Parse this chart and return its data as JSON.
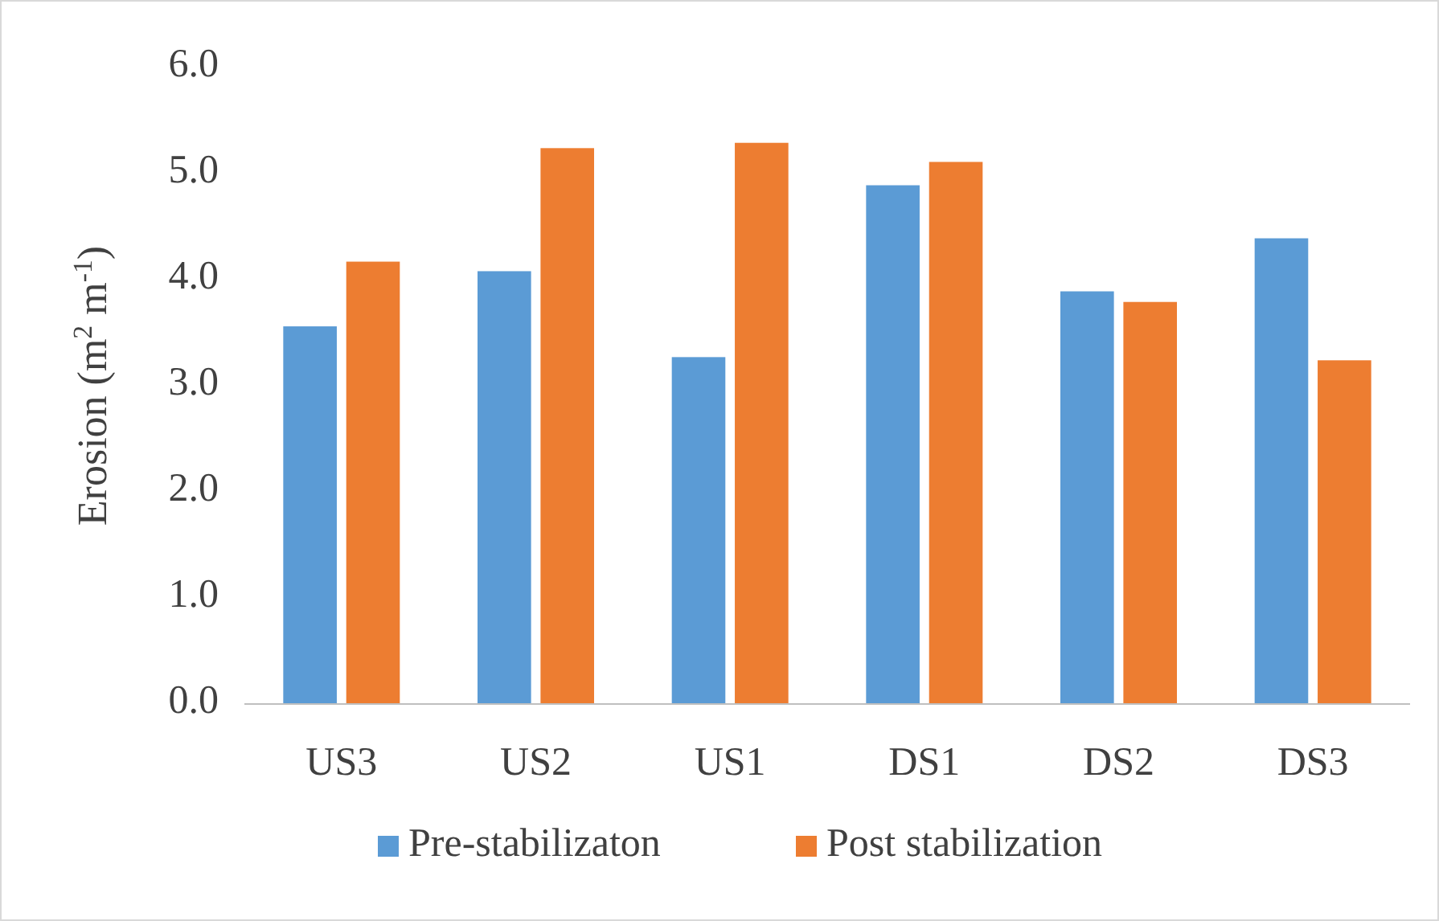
{
  "chart_data": {
    "type": "bar",
    "ylabel": "Erosion (m$^{2}$ m$^{-1}$)",
    "categories": [
      "US3",
      "US2",
      "US1",
      "DS1",
      "DS2",
      "DS3"
    ],
    "series": [
      {
        "name": "Pre-stabilizaton",
        "color": "#5b9bd5",
        "values": [
          3.56,
          4.08,
          3.27,
          4.89,
          3.89,
          4.39
        ]
      },
      {
        "name": "Post stabilization",
        "color": "#ed7d31",
        "values": [
          4.17,
          5.24,
          5.29,
          5.11,
          3.79,
          3.24
        ]
      }
    ],
    "ylim": [
      0,
      6
    ],
    "yticks": [
      {
        "value": 0,
        "label": "0.0"
      },
      {
        "value": 1,
        "label": "1.0"
      },
      {
        "value": 2,
        "label": "2.0"
      },
      {
        "value": 3,
        "label": "3.0"
      },
      {
        "value": 4,
        "label": "4.0"
      },
      {
        "value": 5,
        "label": "5.0"
      },
      {
        "value": 6,
        "label": "6.0"
      }
    ],
    "grid": false,
    "legend": "bottom"
  }
}
